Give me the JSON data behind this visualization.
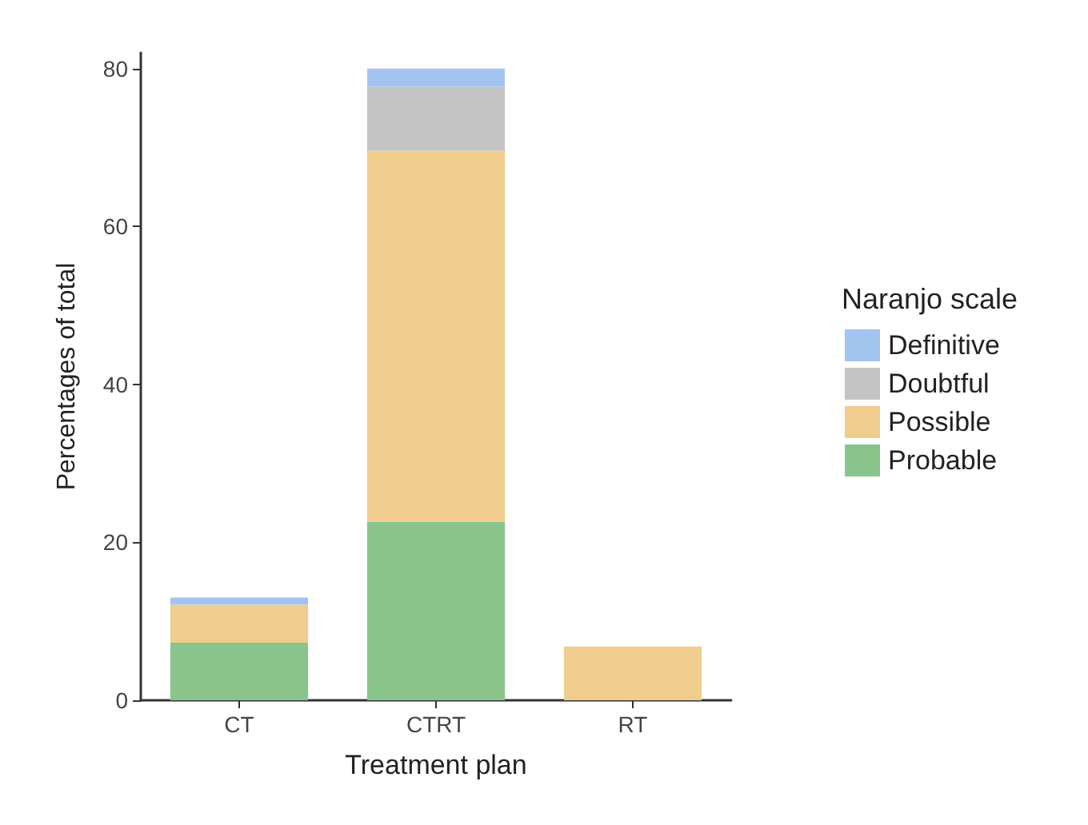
{
  "chart_data": {
    "type": "bar",
    "stacked": true,
    "xlabel": "Treatment plan",
    "ylabel": "Percentages of total",
    "legend_title": "Naranjo scale",
    "legend": "right",
    "grid": false,
    "categories": [
      "CT",
      "CTRT",
      "RT"
    ],
    "ylim": [
      0,
      82
    ],
    "yticks": [
      0,
      20,
      40,
      60,
      80
    ],
    "series": [
      {
        "name": "Probable",
        "color": "#88c48c",
        "values": [
          7.3,
          22.6,
          null
        ]
      },
      {
        "name": "Possible",
        "color": "#f0cd8c",
        "values": [
          4.8,
          47.0,
          6.8
        ]
      },
      {
        "name": "Doubtful",
        "color": "#c4c4c4",
        "values": [
          null,
          8.1,
          null
        ]
      },
      {
        "name": "Definitive",
        "color": "#a4c4f0",
        "values": [
          0.9,
          2.3,
          null
        ]
      }
    ]
  }
}
